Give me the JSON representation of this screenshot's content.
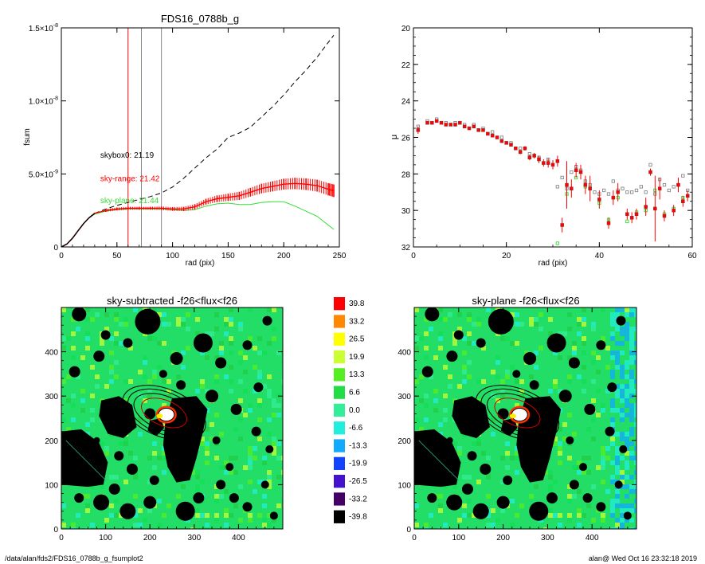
{
  "footer": {
    "path": "/data/alan/fds2/FDS16_0788b_g_fsumplot2",
    "stamp": "alan@  Wed Oct 16 23:32:18 2019"
  },
  "colors": {
    "black": "#000000",
    "red": "#ff0000",
    "green": "#33dd33",
    "gray": "#888888",
    "map_bg": "#22dd66"
  },
  "chart_data": [
    {
      "type": "line",
      "title": "FDS16_0788b_g",
      "xlabel": "rad (pix)",
      "ylabel": "fsum",
      "xlim": [
        0,
        250
      ],
      "ylim": [
        0,
        1.5e-08
      ],
      "xticks": [
        0,
        50,
        100,
        150,
        200,
        250
      ],
      "xtick_labels": [
        "0",
        "50",
        "100",
        "150",
        "200",
        "250"
      ],
      "yticks": [
        0,
        5e-09,
        1e-08,
        1.5e-08
      ],
      "ytick_labels": [
        {
          "mant": "0",
          "exp": ""
        },
        {
          "mant": "5.0×10",
          "exp": "-9"
        },
        {
          "mant": "1.0×10",
          "exp": "-8"
        },
        {
          "mant": "1.5×10",
          "exp": "-8"
        }
      ],
      "vlines": [
        {
          "x": 60,
          "color": "#ff0000"
        },
        {
          "x": 72,
          "color": "#888888"
        },
        {
          "x": 90,
          "color": "#888888"
        }
      ],
      "annotations": [
        {
          "text": "skybox0: 21.19",
          "x": 35,
          "y": 6.1e-09,
          "color": "#000000"
        },
        {
          "text": "sky-range: 21.42",
          "x": 35,
          "y": 4.5e-09,
          "color": "#ff0000"
        },
        {
          "text": "sky-plane: 21.44",
          "x": 35,
          "y": 3e-09,
          "color": "#33dd33"
        }
      ],
      "series": [
        {
          "color": "#000000",
          "dash": true,
          "x": [
            0,
            5,
            10,
            15,
            20,
            25,
            30,
            40,
            50,
            60,
            70,
            80,
            90,
            100,
            110,
            120,
            130,
            140,
            150,
            160,
            170,
            180,
            190,
            200,
            210,
            220,
            230,
            240,
            245
          ],
          "y": [
            0,
            2e-10,
            6e-10,
            1.1e-09,
            1.6e-09,
            2e-09,
            2.3e-09,
            2.6e-09,
            2.85e-09,
            3.05e-09,
            3.25e-09,
            3.45e-09,
            3.7e-09,
            4.1e-09,
            4.7e-09,
            5.4e-09,
            6.1e-09,
            6.7e-09,
            7.5e-09,
            7.8e-09,
            8.2e-09,
            8.9e-09,
            9.6e-09,
            1.04e-08,
            1.13e-08,
            1.21e-08,
            1.3e-08,
            1.4e-08,
            1.45e-08
          ]
        },
        {
          "color": "#33dd33",
          "dash": false,
          "x": [
            0,
            5,
            10,
            15,
            20,
            25,
            30,
            40,
            50,
            60,
            70,
            80,
            90,
            100,
            110,
            120,
            130,
            140,
            150,
            160,
            170,
            180,
            190,
            200,
            210,
            220,
            230,
            240,
            245
          ],
          "y": [
            0,
            2e-10,
            6e-10,
            1.1e-09,
            1.6e-09,
            2e-09,
            2.25e-09,
            2.45e-09,
            2.55e-09,
            2.6e-09,
            2.6e-09,
            2.6e-09,
            2.6e-09,
            2.55e-09,
            2.5e-09,
            2.55e-09,
            2.8e-09,
            2.95e-09,
            3e-09,
            2.9e-09,
            2.9e-09,
            3.05e-09,
            3.1e-09,
            3.1e-09,
            2.8e-09,
            2.45e-09,
            2.1e-09,
            1.5e-09,
            1.2e-09
          ]
        },
        {
          "color": "#ff0000",
          "dash": false,
          "errorbars": true,
          "x": [
            0,
            5,
            10,
            15,
            20,
            25,
            30,
            40,
            50,
            60,
            70,
            80,
            90,
            100,
            110,
            120,
            130,
            140,
            150,
            160,
            170,
            180,
            190,
            200,
            210,
            220,
            230,
            240,
            245
          ],
          "y": [
            0,
            2e-10,
            6e-10,
            1.1e-09,
            1.6e-09,
            2e-09,
            2.3e-09,
            2.5e-09,
            2.6e-09,
            2.65e-09,
            2.65e-09,
            2.65e-09,
            2.65e-09,
            2.6e-09,
            2.6e-09,
            2.75e-09,
            3.1e-09,
            3.3e-09,
            3.4e-09,
            3.5e-09,
            3.75e-09,
            4e-09,
            4.15e-09,
            4.3e-09,
            4.35e-09,
            4.3e-09,
            4.2e-09,
            3.95e-09,
            3.85e-09
          ],
          "err": [
            0,
            0,
            0,
            0,
            0,
            0,
            0,
            1e-10,
            1e-10,
            1e-10,
            1e-10,
            1e-10,
            1.2e-10,
            1.3e-10,
            1.5e-10,
            1.8e-10,
            2e-10,
            2.3e-10,
            2.5e-10,
            2.8e-10,
            3e-10,
            3.3e-10,
            3.5e-10,
            3.7e-10,
            3.9e-10,
            4e-10,
            4.1e-10,
            4.2e-10,
            4.3e-10
          ]
        }
      ]
    },
    {
      "type": "scatter",
      "title": "",
      "xlabel": "rad (pix)",
      "ylabel": "μ",
      "xlim": [
        0,
        60
      ],
      "ylim": [
        32,
        20
      ],
      "xticks": [
        0,
        20,
        40,
        60
      ],
      "xtick_labels": [
        "0",
        "20",
        "40",
        "60"
      ],
      "yticks": [
        20,
        22,
        24,
        26,
        28,
        30,
        32
      ],
      "ytick_labels": [
        "20",
        "22",
        "24",
        "26",
        "28",
        "30",
        "32"
      ],
      "series": [
        {
          "color": "#ff0000",
          "marker": "square-filled",
          "x": [
            1,
            3,
            4,
            5,
            6,
            7,
            8,
            9,
            10,
            11,
            12,
            13,
            14,
            15,
            16,
            17,
            18,
            19,
            20,
            21,
            22,
            23,
            24,
            25,
            26,
            27,
            28,
            29,
            30,
            31,
            32,
            33,
            34,
            35,
            36,
            37,
            38,
            40,
            42,
            43,
            44,
            46,
            47,
            48,
            50,
            51,
            52,
            53,
            54,
            56,
            57,
            58,
            59
          ],
          "y": [
            25.6,
            25.2,
            25.2,
            25.1,
            25.2,
            25.3,
            25.3,
            25.3,
            25.2,
            25.4,
            25.5,
            25.4,
            25.6,
            25.6,
            25.8,
            25.9,
            26.0,
            26.2,
            26.3,
            26.4,
            26.6,
            26.8,
            26.6,
            27.1,
            27.0,
            27.2,
            27.4,
            27.4,
            27.5,
            27.3,
            30.8,
            28.6,
            28.8,
            27.8,
            27.9,
            28.6,
            28.8,
            29.4,
            30.7,
            29.3,
            29.0,
            30.2,
            30.4,
            30.2,
            29.8,
            27.9,
            29.9,
            28.8,
            30.3,
            30.0,
            28.6,
            29.5,
            29.2
          ],
          "err": [
            0.2,
            0.05,
            0.05,
            0.05,
            0.05,
            0.05,
            0.05,
            0.05,
            0.05,
            0.05,
            0.05,
            0.05,
            0.05,
            0.05,
            0.05,
            0.06,
            0.07,
            0.08,
            0.08,
            0.1,
            0.1,
            0.12,
            0.12,
            0.15,
            0.15,
            0.2,
            0.2,
            0.25,
            0.25,
            0.3,
            0.4,
            1.3,
            0.5,
            0.4,
            0.4,
            0.5,
            0.7,
            0.5,
            0.3,
            0.4,
            0.5,
            0.3,
            0.3,
            0.3,
            0.5,
            0.2,
            1.8,
            0.6,
            0.3,
            0.3,
            0.4,
            0.3,
            0.3
          ]
        },
        {
          "color": "#888888",
          "marker": "square-open",
          "x": [
            1,
            3,
            5,
            7,
            9,
            11,
            13,
            15,
            17,
            19,
            21,
            23,
            25,
            27,
            29,
            31,
            32,
            33,
            34,
            35,
            36,
            37,
            38,
            39,
            40,
            41,
            42,
            43,
            44,
            45,
            46,
            47,
            48,
            49,
            50,
            51,
            52,
            53,
            54,
            55,
            56,
            57,
            58,
            59
          ],
          "y": [
            25.4,
            25.1,
            25.0,
            25.2,
            25.2,
            25.3,
            25.3,
            25.5,
            25.7,
            26.0,
            26.3,
            26.6,
            26.9,
            27.1,
            27.2,
            28.7,
            28.2,
            28.8,
            27.9,
            27.6,
            27.8,
            28.4,
            28.6,
            29.0,
            29.1,
            28.9,
            29.1,
            28.4,
            28.9,
            28.8,
            29.0,
            29.0,
            28.9,
            28.7,
            29.0,
            27.5,
            29.1,
            28.3,
            28.6,
            28.9,
            28.7,
            28.6,
            28.1,
            28.9
          ],
          "err": []
        },
        {
          "color": "#33dd33",
          "marker": "square-open",
          "x": [
            31,
            33,
            35,
            37,
            40,
            42,
            44,
            46,
            48,
            50,
            52,
            54,
            56,
            58
          ],
          "y": [
            31.8,
            29.1,
            28.2,
            28.7,
            29.6,
            30.5,
            29.3,
            30.6,
            30.1,
            30.0,
            28.9,
            30.2,
            29.9,
            29.3
          ],
          "err": []
        }
      ]
    },
    {
      "type": "heatmap",
      "title": "sky-subtracted -f26<flux<f26",
      "xlim": [
        0,
        500
      ],
      "ylim": [
        0,
        500
      ],
      "xticks": [
        0,
        100,
        200,
        300,
        400
      ],
      "xtick_labels": [
        "0",
        "100",
        "200",
        "300",
        "400"
      ],
      "yticks": [
        0,
        100,
        200,
        300,
        400
      ],
      "ytick_labels": [
        "0",
        "100",
        "200",
        "300",
        "400"
      ]
    },
    {
      "type": "heatmap",
      "title": "sky-plane -f26<flux<f26",
      "xlim": [
        0,
        500
      ],
      "ylim": [
        0,
        500
      ],
      "xticks": [
        0,
        100,
        200,
        300,
        400
      ],
      "xtick_labels": [
        "0",
        "100",
        "200",
        "300",
        "400"
      ],
      "yticks": [
        0,
        100,
        200,
        300,
        400
      ],
      "ytick_labels": [
        "0",
        "100",
        "200",
        "300",
        "400"
      ]
    },
    {
      "type": "colorbar",
      "labels": [
        "39.8",
        "33.2",
        "26.5",
        "19.9",
        "13.3",
        "6.6",
        "0.0",
        "-6.6",
        "-13.3",
        "-19.9",
        "-26.5",
        "-33.2",
        "-39.8"
      ],
      "colors": [
        "#ff0000",
        "#ff8800",
        "#ffff00",
        "#ccff33",
        "#55ee22",
        "#22dd44",
        "#33ee99",
        "#22eedd",
        "#11aaff",
        "#1144ff",
        "#4411cc",
        "#440066",
        "#000000"
      ]
    }
  ]
}
